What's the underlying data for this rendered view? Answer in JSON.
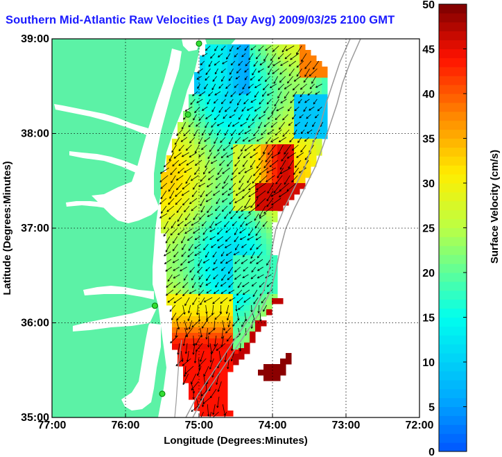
{
  "title": "Southern Mid-Atlantic Raw Velocities (1 Day Avg) 2009/03/25 2100 GMT",
  "map": {
    "lon_range": [
      -77,
      -72
    ],
    "lat_range": [
      35,
      39
    ],
    "x_ticks": [
      "77:00",
      "76:00",
      "75:00",
      "74:00",
      "73:00",
      "72:00"
    ],
    "y_ticks": [
      "39:00",
      "38:00",
      "37:00",
      "36:00",
      "35:00"
    ],
    "xlabel": "Longitude (Degrees:Minutes)",
    "ylabel": "Latitude (Degrees:Minutes)",
    "land_color": "#5cf2a6",
    "grid": "dotted"
  },
  "colorbar": {
    "label": "Surface Velocity (cm/s)",
    "min": 0,
    "max": 50,
    "ticks": [
      "0",
      "5",
      "10",
      "15",
      "20",
      "25",
      "30",
      "35",
      "40",
      "45",
      "50"
    ],
    "colormap": "jet"
  },
  "stations": [
    {
      "lon": -75.0,
      "lat": 38.95
    },
    {
      "lon": -75.15,
      "lat": 38.2
    },
    {
      "lon": -75.6,
      "lat": 36.18
    },
    {
      "lon": -75.5,
      "lat": 35.25
    }
  ]
}
